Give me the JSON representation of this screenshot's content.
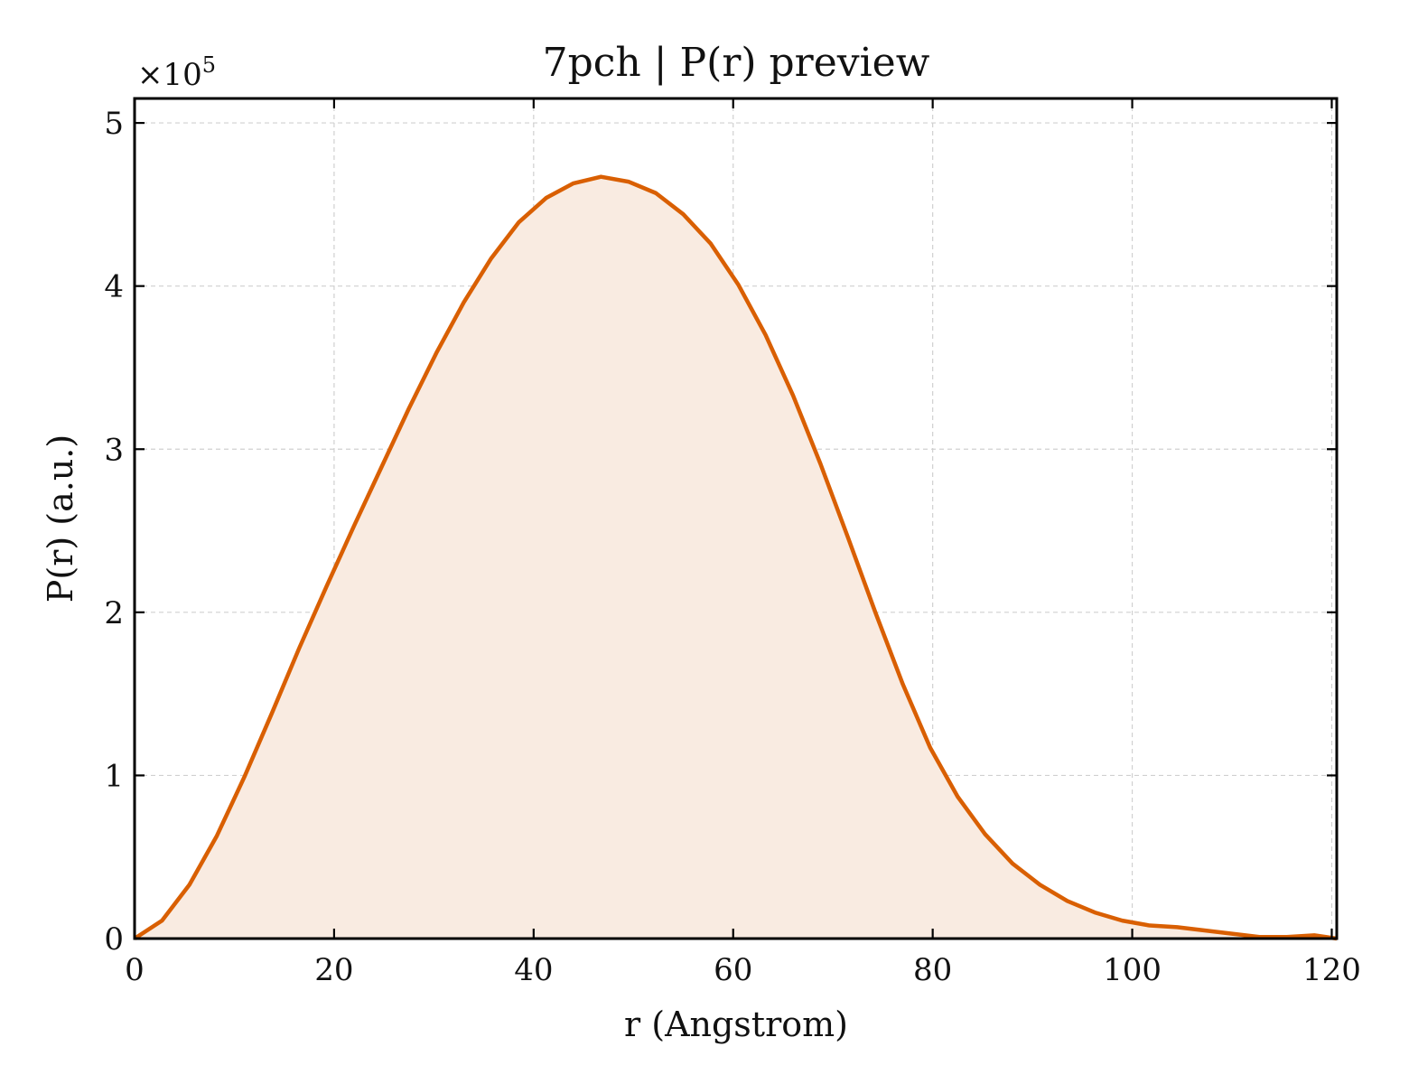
{
  "chart_data": {
    "type": "area",
    "title": "7pch | P(r) preview",
    "xlabel": "r (Angstrom)",
    "ylabel": "P(r) (a.u.)",
    "y_multiplier_prefix": "×10",
    "y_multiplier_exponent": "5",
    "xlim": [
      0,
      120.5
    ],
    "ylim": [
      0,
      5.15
    ],
    "y_scale": 100000,
    "xticks": [
      0,
      20,
      40,
      60,
      80,
      100,
      120
    ],
    "yticks": [
      0,
      1,
      2,
      3,
      4,
      5
    ],
    "grid": true,
    "line_color": "#d95f02",
    "fill_color": "#f9ebe1",
    "series": [
      {
        "x": [
          0,
          2.75,
          5.5,
          8.25,
          11,
          13.75,
          16.5,
          19.25,
          22,
          24.75,
          27.5,
          30.25,
          33,
          35.75,
          38.5,
          41.25,
          44,
          46.75,
          49.5,
          52.25,
          55,
          57.75,
          60.5,
          63.25,
          66,
          68.75,
          71.5,
          74.25,
          77,
          79.75,
          82.5,
          85.25,
          88,
          90.75,
          93.5,
          96.25,
          99,
          101.75,
          104.5,
          107.25,
          110,
          112.75,
          115.5,
          118.25,
          121
        ],
        "y": [
          0.0,
          0.11,
          0.33,
          0.63,
          0.99,
          1.38,
          1.78,
          2.16,
          2.53,
          2.89,
          3.25,
          3.59,
          3.9,
          4.17,
          4.39,
          4.54,
          4.63,
          4.67,
          4.64,
          4.57,
          4.44,
          4.26,
          4.01,
          3.7,
          3.33,
          2.91,
          2.46,
          2.0,
          1.56,
          1.17,
          0.87,
          0.64,
          0.46,
          0.33,
          0.23,
          0.16,
          0.11,
          0.08,
          0.07,
          0.05,
          0.03,
          0.01,
          0.01,
          0.02,
          0.0
        ]
      }
    ]
  }
}
